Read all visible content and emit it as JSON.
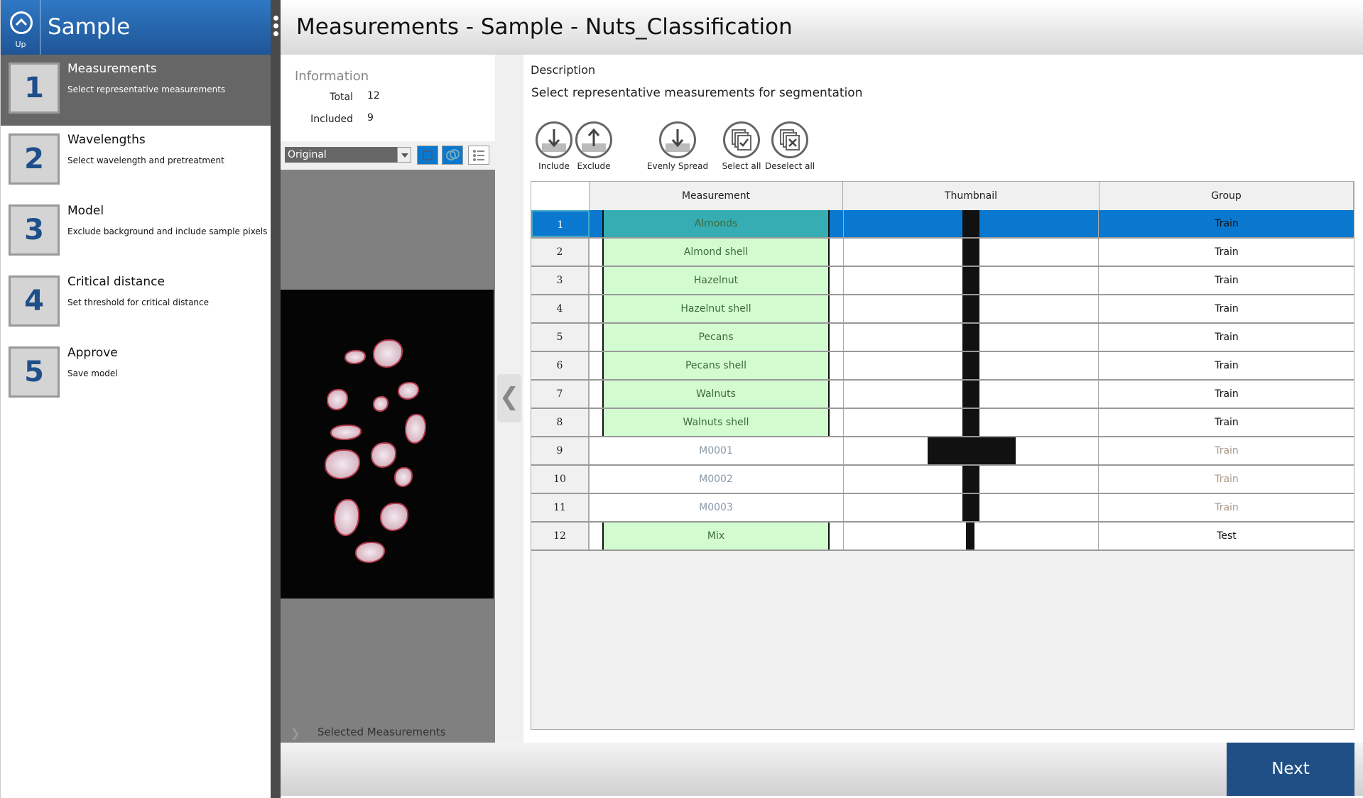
{
  "sidebar": {
    "up_label": "Up",
    "title": "Sample",
    "steps": [
      {
        "num": "1",
        "title": "Measurements",
        "subtitle": "Select representative measurements",
        "active": true
      },
      {
        "num": "2",
        "title": "Wavelengths",
        "subtitle": "Select wavelength and pretreatment"
      },
      {
        "num": "3",
        "title": "Model",
        "subtitle": "Exclude background and include sample pixels"
      },
      {
        "num": "4",
        "title": "Critical distance",
        "subtitle": "Set threshold for critical distance"
      },
      {
        "num": "5",
        "title": "Approve",
        "subtitle": "Save model"
      }
    ]
  },
  "header": {
    "title": "Measurements - Sample - Nuts_Classification"
  },
  "info": {
    "heading": "Information",
    "total_label": "Total",
    "total": "12",
    "included_label": "Included",
    "included": "9"
  },
  "view": {
    "selected": "Original"
  },
  "selected_measurements": "Selected Measurements",
  "main": {
    "description_heading": "Description",
    "description": "Select representative measurements for segmentation",
    "actions": [
      {
        "label": "Include",
        "icon": "include-icon"
      },
      {
        "label": "Exclude",
        "icon": "exclude-icon"
      },
      {
        "label": "Evenly Spread",
        "icon": "evenly-spread-icon"
      },
      {
        "label": "Select all",
        "icon": "select-all-icon"
      },
      {
        "label": "Deselect all",
        "icon": "deselect-all-icon"
      }
    ]
  },
  "table": {
    "columns": [
      "Measurement",
      "Thumbnail",
      "Group"
    ],
    "rows": [
      {
        "n": "1",
        "m": "Almonds",
        "g": "Train",
        "inc": true,
        "sel": true
      },
      {
        "n": "2",
        "m": "Almond shell",
        "g": "Train",
        "inc": true
      },
      {
        "n": "3",
        "m": "Hazelnut",
        "g": "Train",
        "inc": true
      },
      {
        "n": "4",
        "m": "Hazelnut shell",
        "g": "Train",
        "inc": true
      },
      {
        "n": "5",
        "m": "Pecans",
        "g": "Train",
        "inc": true
      },
      {
        "n": "6",
        "m": "Pecans shell",
        "g": "Train",
        "inc": true
      },
      {
        "n": "7",
        "m": "Walnuts",
        "g": "Train",
        "inc": true
      },
      {
        "n": "8",
        "m": "Walnuts shell",
        "g": "Train",
        "inc": true
      },
      {
        "n": "9",
        "m": "M0001",
        "g": "Train",
        "inc": false,
        "thumb": "wide"
      },
      {
        "n": "10",
        "m": "M0002",
        "g": "Train",
        "inc": false
      },
      {
        "n": "11",
        "m": "M0003",
        "g": "Train",
        "inc": false
      },
      {
        "n": "12",
        "m": "Mix",
        "g": "Test",
        "inc": true,
        "thumb": "thin"
      }
    ]
  },
  "footer": {
    "next_label": "Next"
  },
  "colors": {
    "accent": "#1f4f84",
    "selected_row": "#0a78cf",
    "included": "#d2fcd0"
  }
}
